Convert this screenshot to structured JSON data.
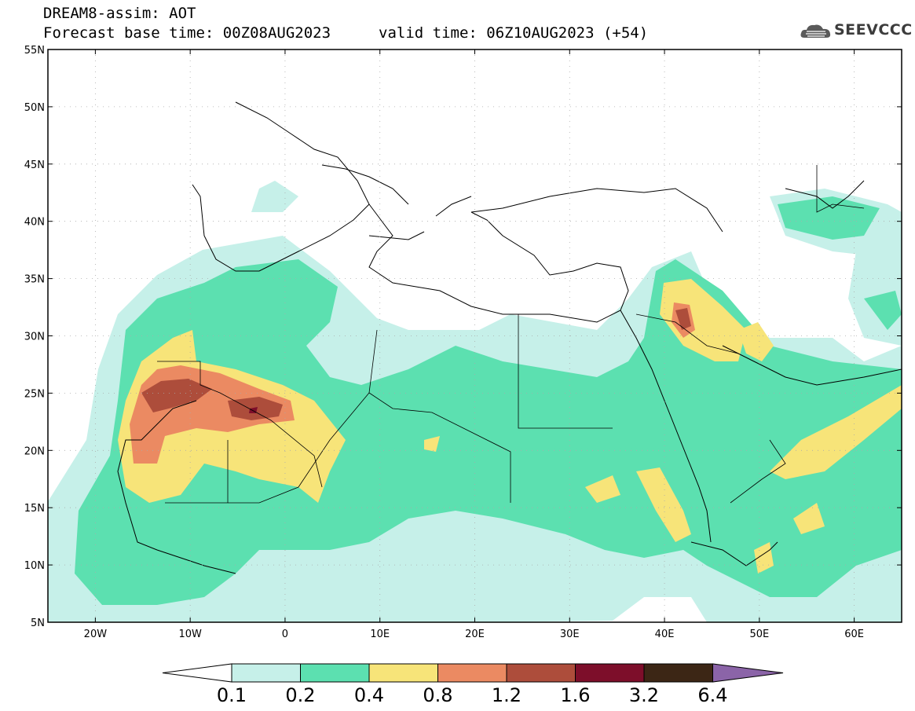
{
  "header": {
    "title": "DREAM8-assim: AOT",
    "base_time": "Forecast base time: 00Z08AUG2023",
    "valid_time": "valid time: 06Z10AUG2023 (+54)",
    "logo_text": "SEEVCCC"
  },
  "map": {
    "lat_labels": [
      "55N",
      "50N",
      "45N",
      "40N",
      "35N",
      "30N",
      "25N",
      "20N",
      "15N",
      "10N",
      "5N"
    ],
    "lon_labels": [
      "20W",
      "10W",
      "0",
      "10E",
      "20E",
      "30E",
      "40E",
      "50E",
      "60E"
    ],
    "lat_range": [
      5,
      55
    ],
    "lon_range": [
      -25,
      65
    ],
    "grid": "dotted"
  },
  "legend": {
    "labels": [
      "0.1",
      "0.2",
      "0.4",
      "0.8",
      "1.2",
      "1.6",
      "3.2",
      "6.4"
    ],
    "colors": [
      "#c6f0e9",
      "#5ce0b0",
      "#f7e479",
      "#eb8a62",
      "#ad4d3b",
      "#7d0e2a",
      "#3c2615",
      "#8b64a8"
    ],
    "below_color": "#ffffff"
  }
}
